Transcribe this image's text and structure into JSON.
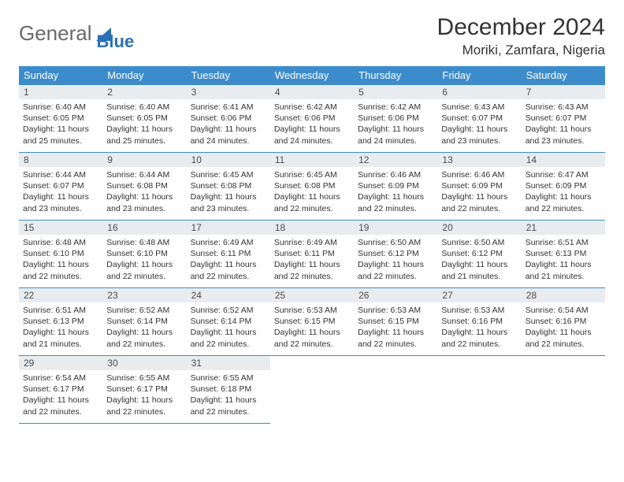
{
  "brand": {
    "part1": "General",
    "part2": "Blue"
  },
  "title": "December 2024",
  "location": "Moriki, Zamfara, Nigeria",
  "colors": {
    "header_bg": "#3c8ccc",
    "header_text": "#ffffff",
    "daynum_bg": "#e9ecef",
    "border": "#3c8ccc",
    "brand_gray": "#6a6a6a",
    "brand_blue": "#2b6fb5"
  },
  "weekdays": [
    "Sunday",
    "Monday",
    "Tuesday",
    "Wednesday",
    "Thursday",
    "Friday",
    "Saturday"
  ],
  "days": [
    {
      "n": "1",
      "sr": "6:40 AM",
      "ss": "6:05 PM",
      "dl": "11 hours and 25 minutes."
    },
    {
      "n": "2",
      "sr": "6:40 AM",
      "ss": "6:05 PM",
      "dl": "11 hours and 25 minutes."
    },
    {
      "n": "3",
      "sr": "6:41 AM",
      "ss": "6:06 PM",
      "dl": "11 hours and 24 minutes."
    },
    {
      "n": "4",
      "sr": "6:42 AM",
      "ss": "6:06 PM",
      "dl": "11 hours and 24 minutes."
    },
    {
      "n": "5",
      "sr": "6:42 AM",
      "ss": "6:06 PM",
      "dl": "11 hours and 24 minutes."
    },
    {
      "n": "6",
      "sr": "6:43 AM",
      "ss": "6:07 PM",
      "dl": "11 hours and 23 minutes."
    },
    {
      "n": "7",
      "sr": "6:43 AM",
      "ss": "6:07 PM",
      "dl": "11 hours and 23 minutes."
    },
    {
      "n": "8",
      "sr": "6:44 AM",
      "ss": "6:07 PM",
      "dl": "11 hours and 23 minutes."
    },
    {
      "n": "9",
      "sr": "6:44 AM",
      "ss": "6:08 PM",
      "dl": "11 hours and 23 minutes."
    },
    {
      "n": "10",
      "sr": "6:45 AM",
      "ss": "6:08 PM",
      "dl": "11 hours and 23 minutes."
    },
    {
      "n": "11",
      "sr": "6:45 AM",
      "ss": "6:08 PM",
      "dl": "11 hours and 22 minutes."
    },
    {
      "n": "12",
      "sr": "6:46 AM",
      "ss": "6:09 PM",
      "dl": "11 hours and 22 minutes."
    },
    {
      "n": "13",
      "sr": "6:46 AM",
      "ss": "6:09 PM",
      "dl": "11 hours and 22 minutes."
    },
    {
      "n": "14",
      "sr": "6:47 AM",
      "ss": "6:09 PM",
      "dl": "11 hours and 22 minutes."
    },
    {
      "n": "15",
      "sr": "6:48 AM",
      "ss": "6:10 PM",
      "dl": "11 hours and 22 minutes."
    },
    {
      "n": "16",
      "sr": "6:48 AM",
      "ss": "6:10 PM",
      "dl": "11 hours and 22 minutes."
    },
    {
      "n": "17",
      "sr": "6:49 AM",
      "ss": "6:11 PM",
      "dl": "11 hours and 22 minutes."
    },
    {
      "n": "18",
      "sr": "6:49 AM",
      "ss": "6:11 PM",
      "dl": "11 hours and 22 minutes."
    },
    {
      "n": "19",
      "sr": "6:50 AM",
      "ss": "6:12 PM",
      "dl": "11 hours and 22 minutes."
    },
    {
      "n": "20",
      "sr": "6:50 AM",
      "ss": "6:12 PM",
      "dl": "11 hours and 21 minutes."
    },
    {
      "n": "21",
      "sr": "6:51 AM",
      "ss": "6:13 PM",
      "dl": "11 hours and 21 minutes."
    },
    {
      "n": "22",
      "sr": "6:51 AM",
      "ss": "6:13 PM",
      "dl": "11 hours and 21 minutes."
    },
    {
      "n": "23",
      "sr": "6:52 AM",
      "ss": "6:14 PM",
      "dl": "11 hours and 22 minutes."
    },
    {
      "n": "24",
      "sr": "6:52 AM",
      "ss": "6:14 PM",
      "dl": "11 hours and 22 minutes."
    },
    {
      "n": "25",
      "sr": "6:53 AM",
      "ss": "6:15 PM",
      "dl": "11 hours and 22 minutes."
    },
    {
      "n": "26",
      "sr": "6:53 AM",
      "ss": "6:15 PM",
      "dl": "11 hours and 22 minutes."
    },
    {
      "n": "27",
      "sr": "6:53 AM",
      "ss": "6:16 PM",
      "dl": "11 hours and 22 minutes."
    },
    {
      "n": "28",
      "sr": "6:54 AM",
      "ss": "6:16 PM",
      "dl": "11 hours and 22 minutes."
    },
    {
      "n": "29",
      "sr": "6:54 AM",
      "ss": "6:17 PM",
      "dl": "11 hours and 22 minutes."
    },
    {
      "n": "30",
      "sr": "6:55 AM",
      "ss": "6:17 PM",
      "dl": "11 hours and 22 minutes."
    },
    {
      "n": "31",
      "sr": "6:55 AM",
      "ss": "6:18 PM",
      "dl": "11 hours and 22 minutes."
    }
  ],
  "labels": {
    "sunrise": "Sunrise:",
    "sunset": "Sunset:",
    "daylight": "Daylight:"
  }
}
